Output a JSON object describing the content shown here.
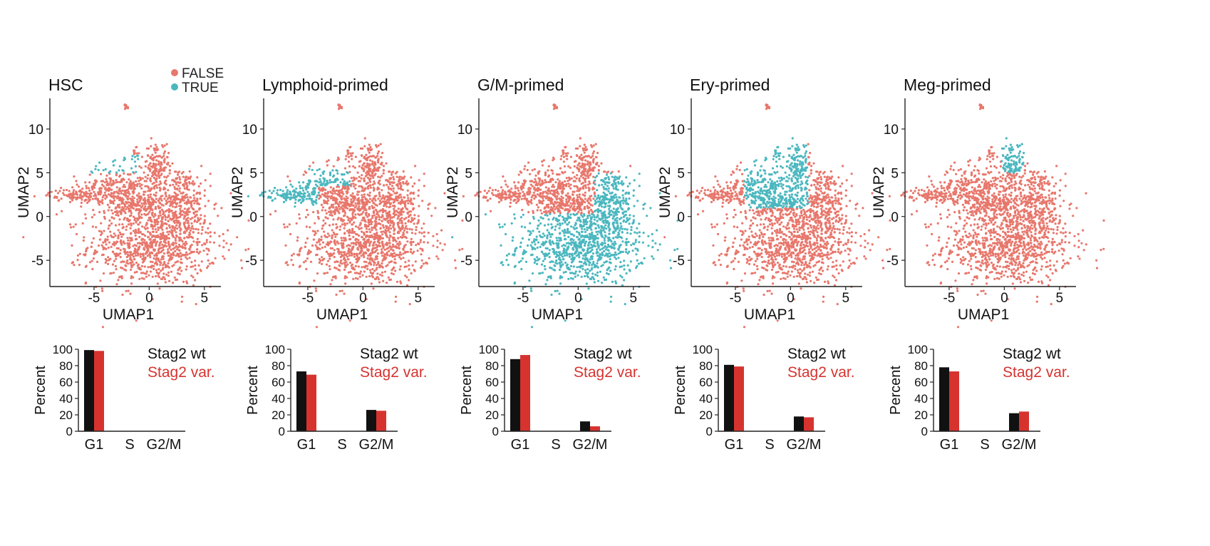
{
  "figure": {
    "umap_axes": {
      "xlabel": "UMAP1",
      "ylabel": "UMAP2",
      "xticks": [
        -5,
        0,
        5
      ],
      "yticks": [
        -5,
        0,
        5,
        10
      ],
      "xlim": [
        -9,
        6.5
      ],
      "ylim": [
        -8,
        13.5
      ]
    },
    "legend": {
      "items": [
        {
          "label": "FALSE",
          "color": "#e8776c"
        },
        {
          "label": "TRUE",
          "color": "#4bb7bf"
        }
      ],
      "placement": "top, above first panel"
    },
    "bar_axes": {
      "ylabel": "Percent",
      "categories": [
        "G1",
        "S",
        "G2/M"
      ],
      "yticks": [
        0,
        20,
        40,
        60,
        80,
        100
      ],
      "ylim": [
        0,
        100
      ]
    },
    "bar_legend": [
      {
        "label": "Stag2 wt",
        "color": "#111111"
      },
      {
        "label": "Stag2 var.",
        "color": "#d6332f"
      }
    ]
  },
  "chart_data": [
    {
      "type": "scatter",
      "title": "HSC",
      "xlabel": "UMAP1",
      "ylabel": "UMAP2",
      "xlim": [
        -9,
        6.5
      ],
      "ylim": [
        -8,
        13.5
      ],
      "legend": [
        "FALSE",
        "TRUE"
      ],
      "highlight_region": "small cluster near upper-left top of main island (UMAP1 -5 to -1, UMAP2 5 to 6.5)"
    },
    {
      "type": "scatter",
      "title": "Lymphoid-primed",
      "xlabel": "UMAP1",
      "ylabel": "UMAP2",
      "xlim": [
        -9,
        6.5
      ],
      "ylim": [
        -8,
        13.5
      ],
      "highlight_region": "left arm (UMAP1 -9 to -4, UMAP2 1 to 4) plus upper-left band"
    },
    {
      "type": "scatter",
      "title": "G/M-primed",
      "xlabel": "UMAP1",
      "ylabel": "UMAP2",
      "xlim": [
        -9,
        6.5
      ],
      "ylim": [
        -8,
        13.5
      ],
      "highlight_region": "lower-right lobe (UMAP1 -5 to 5.5, UMAP2 -7 to 5)"
    },
    {
      "type": "scatter",
      "title": "Ery-primed",
      "xlabel": "UMAP1",
      "ylabel": "UMAP2",
      "xlim": [
        -9,
        6.5
      ],
      "ylim": [
        -8,
        13.5
      ],
      "highlight_region": "upper-middle region (UMAP1 -4 to 1.5, UMAP2 1 to 9)"
    },
    {
      "type": "scatter",
      "title": "Meg-primed",
      "xlabel": "UMAP1",
      "ylabel": "UMAP2",
      "xlim": [
        -9,
        6.5
      ],
      "ylim": [
        -8,
        13.5
      ],
      "highlight_region": "top knob (UMAP1 -0.5 to 1.5, UMAP2 5 to 8.5)"
    },
    {
      "type": "bar",
      "ylabel": "Percent",
      "ylim": [
        0,
        100
      ],
      "categories": [
        "G1",
        "S",
        "G2/M"
      ],
      "series": [
        {
          "name": "Stag2 wt",
          "values": [
            99,
            0,
            0
          ]
        },
        {
          "name": "Stag2 var.",
          "values": [
            98,
            0,
            0
          ]
        }
      ]
    },
    {
      "type": "bar",
      "ylabel": "Percent",
      "ylim": [
        0,
        100
      ],
      "categories": [
        "G1",
        "S",
        "G2/M"
      ],
      "series": [
        {
          "name": "Stag2 wt",
          "values": [
            73,
            0,
            26
          ]
        },
        {
          "name": "Stag2 var.",
          "values": [
            69,
            0,
            25
          ]
        }
      ]
    },
    {
      "type": "bar",
      "ylabel": "Percent",
      "ylim": [
        0,
        100
      ],
      "categories": [
        "G1",
        "S",
        "G2/M"
      ],
      "series": [
        {
          "name": "Stag2 wt",
          "values": [
            88,
            0,
            12
          ]
        },
        {
          "name": "Stag2 var.",
          "values": [
            93,
            0,
            6
          ]
        }
      ]
    },
    {
      "type": "bar",
      "ylabel": "Percent",
      "ylim": [
        0,
        100
      ],
      "categories": [
        "G1",
        "S",
        "G2/M"
      ],
      "series": [
        {
          "name": "Stag2 wt",
          "values": [
            81,
            0,
            18
          ]
        },
        {
          "name": "Stag2 var.",
          "values": [
            79,
            0,
            17
          ]
        }
      ]
    },
    {
      "type": "bar",
      "ylabel": "Percent",
      "ylim": [
        0,
        100
      ],
      "categories": [
        "G1",
        "S",
        "G2/M"
      ],
      "series": [
        {
          "name": "Stag2 wt",
          "values": [
            78,
            0,
            22
          ]
        },
        {
          "name": "Stag2 var.",
          "values": [
            73,
            0,
            24
          ]
        }
      ]
    }
  ]
}
